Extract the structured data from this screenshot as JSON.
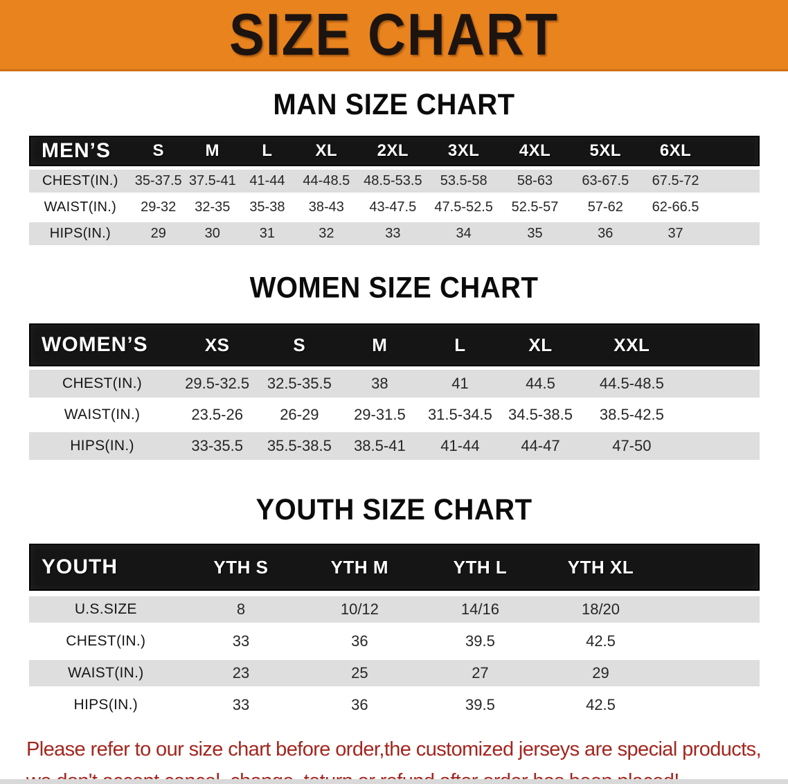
{
  "banner": {
    "title": "SIZE CHART"
  },
  "colors": {
    "banner_bg": "#E8831E",
    "banner_text": "#1D1410",
    "header_bar": "#151515",
    "stripe": "#DEDEDE",
    "footer_text": "#A3261E"
  },
  "men": {
    "heading": "MAN SIZE CHART",
    "header": [
      "MEN’S",
      "S",
      "M",
      "L",
      "XL",
      "2XL",
      "3XL",
      "4XL",
      "5XL",
      "6XL"
    ],
    "rows": [
      {
        "label": "CHEST(IN.)",
        "values": [
          "35-37.5",
          "37.5-41",
          "41-44",
          "44-48.5",
          "48.5-53.5",
          "53.5-58",
          "58-63",
          "63-67.5",
          "67.5-72"
        ]
      },
      {
        "label": "WAIST(IN.)",
        "values": [
          "29-32",
          "32-35",
          "35-38",
          "38-43",
          "43-47.5",
          "47.5-52.5",
          "52.5-57",
          "57-62",
          "62-66.5"
        ]
      },
      {
        "label": "HIPS(IN.)",
        "values": [
          "29",
          "30",
          "31",
          "32",
          "33",
          "34",
          "35",
          "36",
          "37"
        ]
      }
    ]
  },
  "women": {
    "heading": "WOMEN SIZE CHART",
    "header": [
      "WOMEN’S",
      "XS",
      "S",
      "M",
      "L",
      "XL",
      "XXL"
    ],
    "rows": [
      {
        "label": "CHEST(IN.)",
        "values": [
          "29.5-32.5",
          "32.5-35.5",
          "38",
          "41",
          "44.5",
          "44.5-48.5"
        ]
      },
      {
        "label": "WAIST(IN.)",
        "values": [
          "23.5-26",
          "26-29",
          "29-31.5",
          "31.5-34.5",
          "34.5-38.5",
          "38.5-42.5"
        ]
      },
      {
        "label": "HIPS(IN.)",
        "values": [
          "33-35.5",
          "35.5-38.5",
          "38.5-41",
          "41-44",
          "44-47",
          "47-50"
        ]
      }
    ]
  },
  "youth": {
    "heading": "YOUTH SIZE CHART",
    "header": [
      "YOUTH",
      "YTH S",
      "YTH M",
      "YTH L",
      "YTH XL"
    ],
    "rows": [
      {
        "label": "U.S.SIZE",
        "values": [
          "8",
          "10/12",
          "14/16",
          "18/20"
        ]
      },
      {
        "label": "CHEST(IN.)",
        "values": [
          "33",
          "36",
          "39.5",
          "42.5"
        ]
      },
      {
        "label": "WAIST(IN.)",
        "values": [
          "23",
          "25",
          "27",
          "29"
        ]
      },
      {
        "label": "HIPS(IN.)",
        "values": [
          "33",
          "36",
          "39.5",
          "42.5"
        ]
      }
    ]
  },
  "footer": {
    "line1": "Please refer to our size chart before order,the customized jerseys are special products,",
    "line2": "we don't accept cancel, change, teturn or refund after order has been placed!"
  }
}
